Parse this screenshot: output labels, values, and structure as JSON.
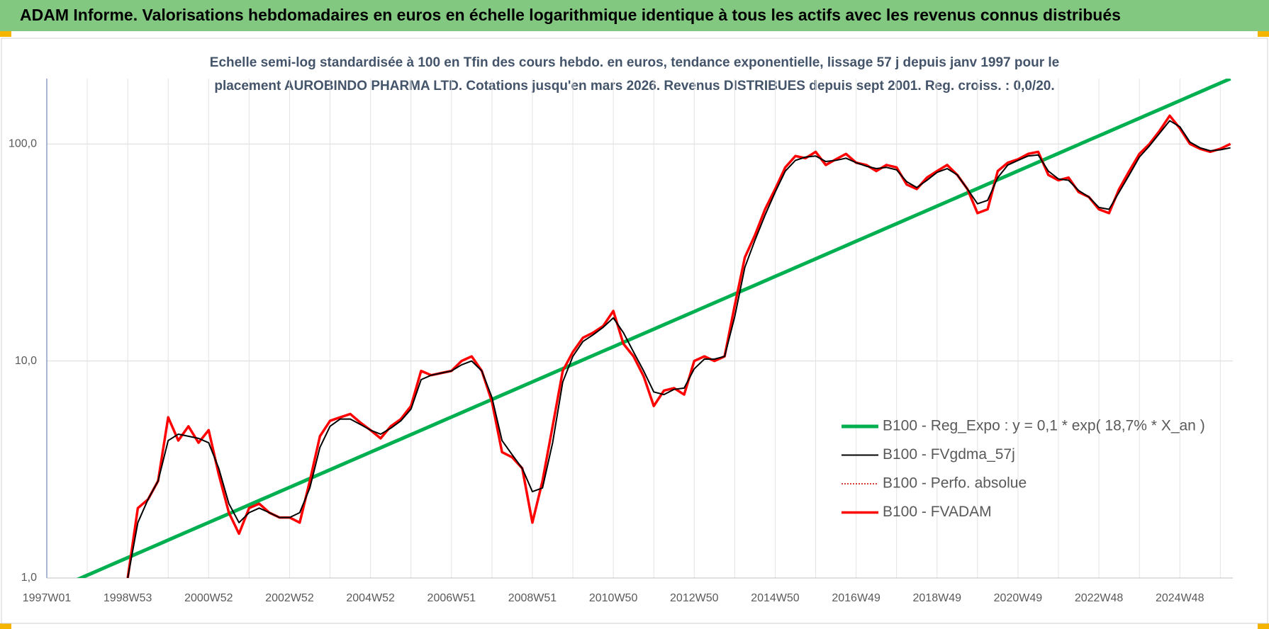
{
  "header": {
    "title": "ADAM Informe. Valorisations hebdomadaires en euros en échelle logarithmique identique à tous les actifs avec les revenus connus distribués"
  },
  "chart_data": {
    "type": "line",
    "subtitle": [
      "Echelle semi-log standardisée à 100 en Tfin des cours hebdo. en euros, tendance exponentielle, lissage 57 j depuis janv 1997 pour le",
      "placement AUROBINDO PHARMA LTD. Cotations jusqu'en mars 2026. Revenus DISTRIBUES depuis sept 2001. Reg. croiss. : 0,0/20."
    ],
    "log_scale": true,
    "grid": true,
    "legend": "right",
    "ylim": [
      1,
      200
    ],
    "yticks": [
      {
        "value": 1,
        "label": "1,0"
      },
      {
        "value": 10,
        "label": "10,0"
      },
      {
        "value": 100,
        "label": "100,0"
      }
    ],
    "categories": [
      "1997W01",
      null,
      null,
      null,
      null,
      null,
      null,
      null,
      "1998W53",
      null,
      null,
      null,
      null,
      null,
      null,
      null,
      "2000W52",
      null,
      null,
      null,
      null,
      null,
      null,
      null,
      "2002W52",
      null,
      null,
      null,
      null,
      null,
      null,
      null,
      "2004W52",
      null,
      null,
      null,
      null,
      null,
      null,
      null,
      "2006W51",
      null,
      null,
      null,
      null,
      null,
      null,
      null,
      "2008W51",
      null,
      null,
      null,
      null,
      null,
      null,
      null,
      "2010W50",
      null,
      null,
      null,
      null,
      null,
      null,
      null,
      "2012W50",
      null,
      null,
      null,
      null,
      null,
      null,
      null,
      "2014W50",
      null,
      null,
      null,
      null,
      null,
      null,
      null,
      "2016W49",
      null,
      null,
      null,
      null,
      null,
      null,
      null,
      "2018W49",
      null,
      null,
      null,
      null,
      null,
      null,
      null,
      "2020W49",
      null,
      null,
      null,
      null,
      null,
      null,
      null,
      "2022W48",
      null,
      null,
      null,
      null,
      null,
      null,
      null,
      "2024W48",
      null,
      null,
      null,
      null,
      null
    ],
    "series": [
      {
        "name": "B100 - Reg_Expo : y = 0,1 * exp( 18,7% * X_an )",
        "color": "#00b050",
        "values": [
          0.855,
          0.896,
          0.939,
          0.983,
          1.03,
          1.079,
          1.131,
          1.185,
          1.241,
          1.3,
          1.362,
          1.427,
          1.496,
          1.567,
          1.642,
          1.72,
          1.802,
          1.888,
          1.978,
          2.073,
          2.172,
          2.276,
          2.384,
          2.498,
          2.617,
          2.742,
          2.873,
          3.01,
          3.154,
          3.304,
          3.462,
          3.627,
          3.8,
          3.981,
          4.171,
          4.37,
          4.579,
          4.797,
          5.026,
          5.266,
          5.518,
          5.781,
          6.057,
          6.346,
          6.649,
          6.966,
          7.298,
          7.647,
          8.012,
          8.394,
          8.795,
          9.215,
          9.655,
          10.12,
          10.6,
          11.11,
          11.63,
          12.19,
          12.77,
          13.38,
          14.02,
          14.69,
          15.39,
          16.12,
          16.89,
          17.7,
          18.54,
          19.43,
          20.36,
          21.33,
          22.34,
          23.41,
          24.53,
          25.7,
          26.93,
          28.21,
          29.56,
          30.97,
          32.45,
          34.0,
          35.62,
          37.32,
          39.1,
          40.97,
          42.92,
          44.97,
          47.12,
          49.37,
          51.72,
          54.19,
          56.78,
          59.49,
          62.32,
          65.3,
          68.42,
          71.68,
          75.09,
          78.68,
          82.43,
          86.37,
          90.49,
          94.81,
          99.34,
          104.1,
          109.0,
          114.2,
          119.7,
          125.4,
          131.4,
          137.7,
          144.2,
          151.1,
          158.3,
          165.9,
          173.8,
          182.1,
          190.8,
          199.9
        ]
      },
      {
        "name": "B100 - FVgdma_57j",
        "color": "#000000",
        "values": [
          null,
          null,
          null,
          null,
          null,
          null,
          null,
          null,
          1.0,
          1.8,
          2.3,
          2.8,
          4.3,
          4.6,
          4.5,
          4.4,
          4.2,
          3.2,
          2.2,
          1.8,
          2.0,
          2.1,
          2.0,
          1.9,
          1.9,
          2.0,
          2.6,
          4.0,
          5.0,
          5.4,
          5.4,
          5.1,
          4.8,
          4.6,
          4.9,
          5.3,
          6.0,
          8.2,
          8.6,
          8.8,
          9.0,
          9.6,
          10.0,
          9.0,
          6.8,
          4.3,
          3.7,
          3.2,
          2.5,
          2.6,
          4.2,
          8.0,
          10.5,
          12.3,
          13.2,
          14.3,
          15.8,
          13.5,
          11.0,
          9.0,
          7.2,
          7.0,
          7.4,
          7.5,
          9.2,
          10.2,
          10.2,
          10.5,
          16,
          27,
          36,
          47,
          60,
          75,
          84,
          87,
          88,
          83,
          84,
          86,
          82,
          79,
          77,
          78,
          76,
          67,
          63,
          68,
          74,
          77,
          72,
          62,
          53,
          55,
          70,
          80,
          84,
          88,
          89,
          75,
          69,
          68,
          61,
          57,
          51,
          50,
          60,
          72,
          87,
          98,
          112,
          128,
          120,
          102,
          96,
          93,
          94,
          96
        ]
      },
      {
        "name": "B100 - Perfo. absolue",
        "color": "#c00000",
        "dashed": true,
        "values": [
          null,
          null,
          null,
          null,
          null,
          null,
          null,
          null,
          1.0,
          2.1,
          2.3,
          2.8,
          5.5,
          4.3,
          5.0,
          4.2,
          4.8,
          3.0,
          2.0,
          1.6,
          2.1,
          2.2,
          2.0,
          1.9,
          1.9,
          1.8,
          2.8,
          4.5,
          5.3,
          5.5,
          5.7,
          5.2,
          4.8,
          4.4,
          5.0,
          5.4,
          6.2,
          9.0,
          8.6,
          8.8,
          9.0,
          10.0,
          10.5,
          9.0,
          6.5,
          3.8,
          3.6,
          3.2,
          1.8,
          2.8,
          5.0,
          9.0,
          11.0,
          12.8,
          13.5,
          14.5,
          17.0,
          12.0,
          10.5,
          8.5,
          6.2,
          7.3,
          7.5,
          7.0,
          10.0,
          10.5,
          10.0,
          10.5,
          18,
          30,
          38,
          50,
          62,
          78,
          88,
          86,
          92,
          80,
          85,
          90,
          82,
          80,
          75,
          80,
          78,
          65,
          62,
          70,
          75,
          80,
          72,
          62,
          48,
          50,
          75,
          82,
          85,
          90,
          92,
          72,
          68,
          70,
          60,
          57,
          50,
          48,
          62,
          75,
          90,
          100,
          115,
          135,
          118,
          100,
          95,
          92,
          95,
          100
        ]
      },
      {
        "name": "B100 - FVADAM",
        "color": "#ff0000",
        "values": [
          null,
          null,
          null,
          null,
          null,
          null,
          null,
          null,
          1.0,
          2.1,
          2.3,
          2.8,
          5.5,
          4.3,
          5.0,
          4.2,
          4.8,
          3.0,
          2.0,
          1.6,
          2.1,
          2.2,
          2.0,
          1.9,
          1.9,
          1.8,
          2.8,
          4.5,
          5.3,
          5.5,
          5.7,
          5.2,
          4.8,
          4.4,
          5.0,
          5.4,
          6.2,
          9.0,
          8.6,
          8.8,
          9.0,
          10.0,
          10.5,
          9.0,
          6.5,
          3.8,
          3.6,
          3.2,
          1.8,
          2.8,
          5.0,
          9.0,
          11.0,
          12.8,
          13.5,
          14.5,
          17.0,
          12.0,
          10.5,
          8.5,
          6.2,
          7.3,
          7.5,
          7.0,
          10.0,
          10.5,
          10.0,
          10.5,
          18,
          30,
          38,
          50,
          62,
          78,
          88,
          86,
          92,
          80,
          85,
          90,
          82,
          80,
          75,
          80,
          78,
          65,
          62,
          70,
          75,
          80,
          72,
          62,
          48,
          50,
          75,
          82,
          85,
          90,
          92,
          72,
          68,
          70,
          60,
          57,
          50,
          48,
          62,
          75,
          90,
          100,
          115,
          135,
          118,
          100,
          95,
          92,
          95,
          100
        ]
      }
    ]
  }
}
